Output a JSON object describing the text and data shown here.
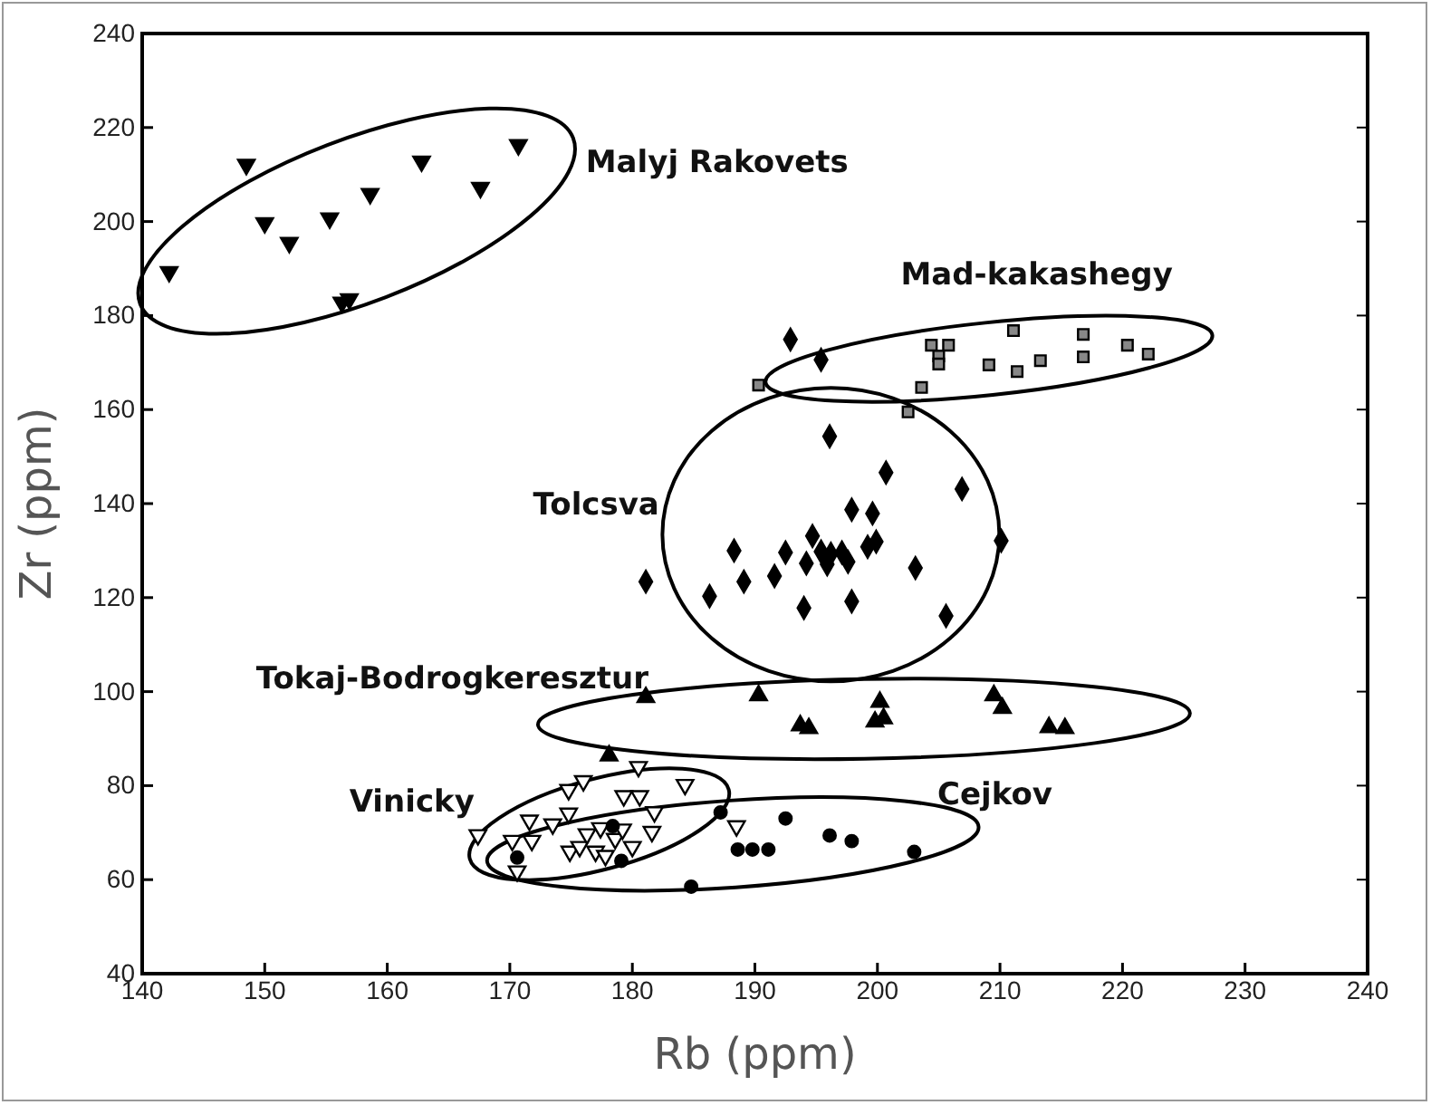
{
  "chart_data": {
    "type": "scatter",
    "xlabel": "Rb (ppm)",
    "ylabel": "Zr (ppm)",
    "xlim": [
      140,
      240
    ],
    "ylim": [
      40,
      240
    ],
    "xticks": [
      140,
      150,
      160,
      170,
      180,
      190,
      200,
      210,
      220,
      230,
      240
    ],
    "yticks": [
      40,
      60,
      80,
      100,
      120,
      140,
      160,
      180,
      200,
      220,
      240
    ],
    "series": [
      {
        "name": "Malyj Rakovets",
        "color": "#000000",
        "marker": "triangle-down",
        "x": [
          142.2,
          148.5,
          150.0,
          152.0,
          155.3,
          156.3,
          156.9,
          158.6,
          162.8,
          167.6,
          170.7
        ],
        "values": [
          189.3,
          212.1,
          199.7,
          195.5,
          200.7,
          182.8,
          183.5,
          205.9,
          212.8,
          207.2,
          216.3
        ]
      },
      {
        "name": "Mad-kakashegy",
        "color": "#888888",
        "marker": "square",
        "x": [
          190.3,
          202.5,
          203.6,
          204.4,
          205.8,
          205.0,
          205.0,
          209.1,
          211.1,
          211.4,
          213.3,
          216.8,
          216.8,
          220.4,
          222.1
        ],
        "values": [
          165.2,
          159.5,
          164.7,
          173.7,
          173.7,
          171.4,
          169.7,
          169.5,
          176.8,
          168.1,
          170.4,
          176.0,
          171.2,
          173.7,
          171.8
        ]
      },
      {
        "name": "Tolcsva",
        "color": "#000000",
        "marker": "diamond",
        "x": [
          192.9,
          195.4,
          196.1,
          200.7,
          206.9,
          197.9,
          199.6,
          194.7,
          210.1,
          199.9,
          199.2,
          188.3,
          192.5,
          195.4,
          196.2,
          197.1,
          197.6,
          194.2,
          195.9,
          203.1,
          181.1,
          189.1,
          191.6,
          186.3,
          197.9,
          194.0,
          205.6
        ],
        "values": [
          174.9,
          170.6,
          154.3,
          146.6,
          143.1,
          138.7,
          137.9,
          133.1,
          132.1,
          131.9,
          130.8,
          130.0,
          129.6,
          129.8,
          129.3,
          129.6,
          127.6,
          127.3,
          127.1,
          126.3,
          123.4,
          123.4,
          124.6,
          120.3,
          119.2,
          117.8,
          116.1
        ]
      },
      {
        "name": "Tokaj-Bodrogkeresztur",
        "color": "#000000",
        "marker": "triangle",
        "x": [
          181.1,
          190.3,
          193.7,
          194.4,
          200.2,
          199.8,
          200.5,
          209.5,
          210.2,
          214.0,
          215.3,
          178.1
        ],
        "values": [
          98.8,
          99.2,
          92.8,
          92.2,
          97.8,
          93.6,
          94.3,
          99.2,
          96.5,
          92.4,
          92.2,
          86.4
        ]
      },
      {
        "name": "Vinicky",
        "color": "#ffffff",
        "marker": "triangle-down",
        "x": [
          167.4,
          170.2,
          170.6,
          171.8,
          171.6,
          173.5,
          174.8,
          174.8,
          176.0,
          174.9,
          175.7,
          177.0,
          176.3,
          177.4,
          178.6,
          179.2,
          180.0,
          179.3,
          180.6,
          180.5,
          181.6,
          181.8,
          184.3,
          188.5,
          177.8
        ],
        "values": [
          69.5,
          68.3,
          61.8,
          68.3,
          72.6,
          71.8,
          74.1,
          79.1,
          81.0,
          66.0,
          67.0,
          66.0,
          69.7,
          71.0,
          68.7,
          70.7,
          67.0,
          77.8,
          77.8,
          84.0,
          70.2,
          74.4,
          80.2,
          71.4,
          65.1
        ]
      },
      {
        "name": "Cejkov",
        "color": "#000000",
        "marker": "circle",
        "x": [
          170.6,
          178.4,
          179.1,
          187.2,
          184.8,
          188.6,
          189.8,
          191.1,
          192.5,
          196.1,
          197.9,
          203.0
        ],
        "values": [
          64.7,
          71.4,
          64.0,
          74.3,
          58.5,
          66.4,
          66.4,
          66.4,
          73.0,
          69.4,
          68.2,
          65.9
        ]
      }
    ]
  }
}
